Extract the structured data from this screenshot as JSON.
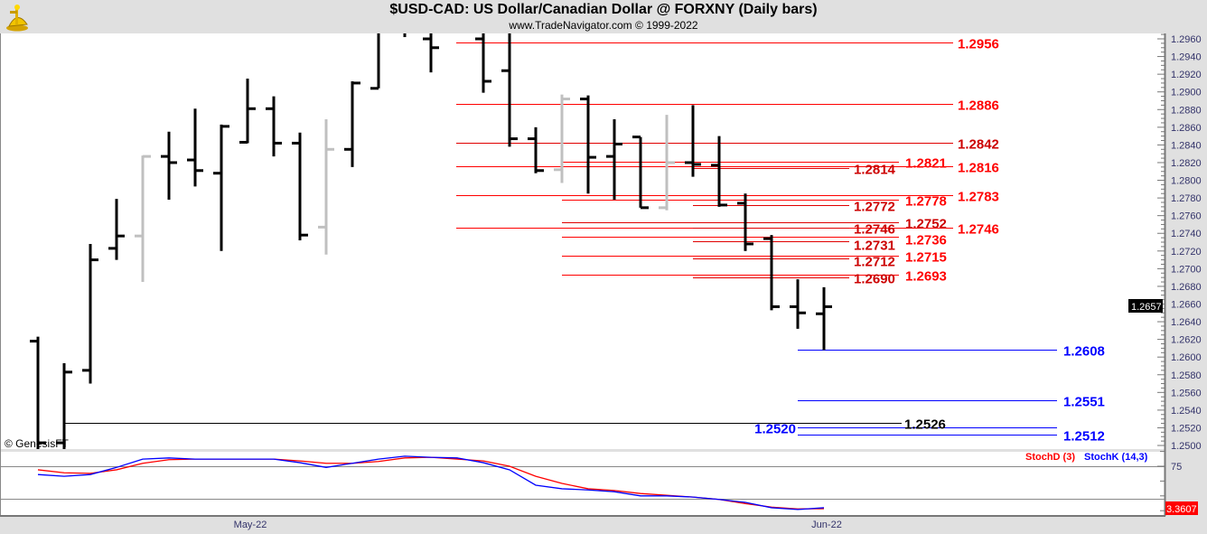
{
  "header": {
    "title": "$USD-CAD:  US Dollar/Canadian Dollar @ FORXNY  (Daily bars)",
    "subtitle": "www.TradeNavigator.com © 1999-2022",
    "logo_icon": "sextant-icon"
  },
  "copyright": "© GenesisFT",
  "colors": {
    "up_bar": "#000000",
    "down_bar": "#c0c0c0",
    "resistance": "#ff0000",
    "support": "#0000ff",
    "stoch_d": "#ff0000",
    "stoch_k": "#0000ff"
  },
  "chart_data": [
    {
      "type": "ohlc",
      "title": "$USD-CAD:  US Dollar/Canadian Dollar @ FORXNY  (Daily bars)",
      "ylim": [
        1.2495,
        1.2966
      ],
      "y_ticks": [
        "1.2500",
        "1.2520",
        "1.2540",
        "1.2560",
        "1.2580",
        "1.2600",
        "1.2620",
        "1.2640",
        "1.2660",
        "1.2680",
        "1.2700",
        "1.2720",
        "1.2740",
        "1.2760",
        "1.2780",
        "1.2800",
        "1.2820",
        "1.2840",
        "1.2860",
        "1.2880",
        "1.2900",
        "1.2920",
        "1.2940",
        "1.2960"
      ],
      "x_ticks": [
        {
          "label": "May-22",
          "bar": 8
        },
        {
          "label": "Jun-22",
          "bar": 30
        }
      ],
      "last_price": "1.2657",
      "bars": [
        {
          "o": 1.2618,
          "h": 1.2623,
          "l": 1.249,
          "c": 1.2503,
          "gray": false
        },
        {
          "o": 1.2503,
          "h": 1.2593,
          "l": 1.249,
          "c": 1.2583,
          "gray": false
        },
        {
          "o": 1.2585,
          "h": 1.2728,
          "l": 1.257,
          "c": 1.271,
          "gray": false
        },
        {
          "o": 1.2723,
          "h": 1.2779,
          "l": 1.271,
          "c": 1.2737,
          "gray": false
        },
        {
          "o": 1.2737,
          "h": 1.2828,
          "l": 1.2685,
          "c": 1.2827,
          "gray": true
        },
        {
          "o": 1.2827,
          "h": 1.2855,
          "l": 1.2778,
          "c": 1.282,
          "gray": false
        },
        {
          "o": 1.2823,
          "h": 1.2881,
          "l": 1.2793,
          "c": 1.2811,
          "gray": false
        },
        {
          "o": 1.2808,
          "h": 1.2863,
          "l": 1.272,
          "c": 1.2861,
          "gray": false
        },
        {
          "o": 1.2843,
          "h": 1.2915,
          "l": 1.2842,
          "c": 1.2881,
          "gray": false
        },
        {
          "o": 1.2881,
          "h": 1.2895,
          "l": 1.2827,
          "c": 1.2842,
          "gray": false
        },
        {
          "o": 1.2842,
          "h": 1.2854,
          "l": 1.2732,
          "c": 1.2738,
          "gray": false
        },
        {
          "o": 1.2747,
          "h": 1.2869,
          "l": 1.2716,
          "c": 1.2835,
          "gray": true
        },
        {
          "o": 1.2835,
          "h": 1.2912,
          "l": 1.2815,
          "c": 1.291,
          "gray": false
        },
        {
          "o": 1.2904,
          "h": 1.299,
          "l": 1.2904,
          "c": 1.2975,
          "gray": false
        },
        {
          "o": 1.2985,
          "h": 1.3,
          "l": 1.2962,
          "c": 1.297,
          "gray": false
        },
        {
          "o": 1.296,
          "h": 1.299,
          "l": 1.2922,
          "c": 1.295,
          "gray": false
        },
        {
          "o": 1.299,
          "h": 1.301,
          "l": 1.297,
          "c": 1.2985,
          "gray": false
        },
        {
          "o": 1.296,
          "h": 1.299,
          "l": 1.2899,
          "c": 1.2912,
          "gray": false
        },
        {
          "o": 1.2924,
          "h": 1.298,
          "l": 1.2838,
          "c": 1.2847,
          "gray": false
        },
        {
          "o": 1.2847,
          "h": 1.286,
          "l": 1.2808,
          "c": 1.2811,
          "gray": false
        },
        {
          "o": 1.2812,
          "h": 1.2897,
          "l": 1.2797,
          "c": 1.2892,
          "gray": true
        },
        {
          "o": 1.2892,
          "h": 1.2896,
          "l": 1.2785,
          "c": 1.2826,
          "gray": false
        },
        {
          "o": 1.2827,
          "h": 1.2869,
          "l": 1.2778,
          "c": 1.2841,
          "gray": false
        },
        {
          "o": 1.2849,
          "h": 1.2849,
          "l": 1.2769,
          "c": 1.2769,
          "gray": false
        },
        {
          "o": 1.2769,
          "h": 1.2874,
          "l": 1.2766,
          "c": 1.282,
          "gray": true
        },
        {
          "o": 1.282,
          "h": 1.2885,
          "l": 1.2804,
          "c": 1.2818,
          "gray": false
        },
        {
          "o": 1.2817,
          "h": 1.285,
          "l": 1.277,
          "c": 1.2772,
          "gray": false
        },
        {
          "o": 1.2774,
          "h": 1.2785,
          "l": 1.272,
          "c": 1.2728,
          "gray": false
        },
        {
          "o": 1.2734,
          "h": 1.2738,
          "l": 1.2653,
          "c": 1.2657,
          "gray": false
        },
        {
          "o": 1.2657,
          "h": 1.2688,
          "l": 1.2632,
          "c": 1.265,
          "gray": false
        },
        {
          "o": 1.2649,
          "h": 1.2679,
          "l": 1.2608,
          "c": 1.2657,
          "gray": false
        }
      ],
      "levels": [
        {
          "value": 1.2956,
          "label": "1.2956",
          "group": "long",
          "color": "#ff0000"
        },
        {
          "value": 1.2886,
          "label": "1.2886",
          "group": "long",
          "color": "#ff0000"
        },
        {
          "value": 1.2842,
          "label": "1.2842",
          "group": "long",
          "color": "#cc0000"
        },
        {
          "value": 1.2816,
          "label": "1.2816",
          "group": "long",
          "color": "#ff0000"
        },
        {
          "value": 1.2783,
          "label": "1.2783",
          "group": "long",
          "color": "#ff0000"
        },
        {
          "value": 1.2746,
          "label": "1.2746",
          "group": "long",
          "color": "#ff0000"
        },
        {
          "value": 1.2821,
          "label": "1.2821",
          "group": "mid",
          "color": "#ff0000"
        },
        {
          "value": 1.2778,
          "label": "1.2778",
          "group": "mid",
          "color": "#ff0000"
        },
        {
          "value": 1.2752,
          "label": "1.2752",
          "group": "mid",
          "color": "#cc0000"
        },
        {
          "value": 1.2736,
          "label": "1.2736",
          "group": "mid",
          "color": "#ff0000"
        },
        {
          "value": 1.2715,
          "label": "1.2715",
          "group": "mid",
          "color": "#ff0000"
        },
        {
          "value": 1.2693,
          "label": "1.2693",
          "group": "mid",
          "color": "#ff0000"
        },
        {
          "value": 1.2814,
          "label": "1.2814",
          "group": "short",
          "color": "#cc0000"
        },
        {
          "value": 1.2772,
          "label": "1.2772",
          "group": "short",
          "color": "#cc0000"
        },
        {
          "value": 1.2746,
          "label": "1.2746",
          "group": "short",
          "color": "#cc0000"
        },
        {
          "value": 1.2731,
          "label": "1.2731",
          "group": "short",
          "color": "#cc0000"
        },
        {
          "value": 1.2712,
          "label": "1.2712",
          "group": "short",
          "color": "#cc0000"
        },
        {
          "value": 1.269,
          "label": "1.2690",
          "group": "short",
          "color": "#cc0000"
        },
        {
          "value": 1.2608,
          "label": "1.2608",
          "group": "support",
          "color": "#0000ff"
        },
        {
          "value": 1.2551,
          "label": "1.2551",
          "group": "support",
          "color": "#0000ff"
        },
        {
          "value": 1.2512,
          "label": "1.2512",
          "group": "support",
          "color": "#0000ff"
        },
        {
          "value": 1.252,
          "label": "1.2520",
          "group": "support-left",
          "color": "#0000ff"
        },
        {
          "value": 1.2526,
          "label": "1.2526",
          "group": "black",
          "color": "#000000"
        }
      ]
    },
    {
      "type": "line",
      "ylim": [
        0,
        100
      ],
      "y_ticks": [
        "75"
      ],
      "reference_lines": [
        75,
        20
      ],
      "last_value": "3.3607",
      "series": [
        {
          "name": "StochD (3)",
          "color": "#ff0000",
          "values": [
            69,
            64,
            63,
            69,
            80,
            86,
            87,
            87,
            87,
            87,
            84,
            80,
            80,
            83,
            89,
            90,
            87,
            84,
            75,
            58,
            46,
            37,
            34,
            29,
            26,
            23,
            19,
            12,
            6,
            3,
            3.36
          ]
        },
        {
          "name": "StochK (14,3)",
          "color": "#0000ff",
          "values": [
            61,
            58,
            61,
            73,
            87,
            89,
            87,
            87,
            87,
            87,
            81,
            73,
            80,
            87,
            92,
            90,
            89,
            81,
            69,
            43,
            37,
            35,
            32,
            25,
            25,
            23,
            19,
            14,
            5,
            2,
            5
          ]
        }
      ]
    }
  ]
}
